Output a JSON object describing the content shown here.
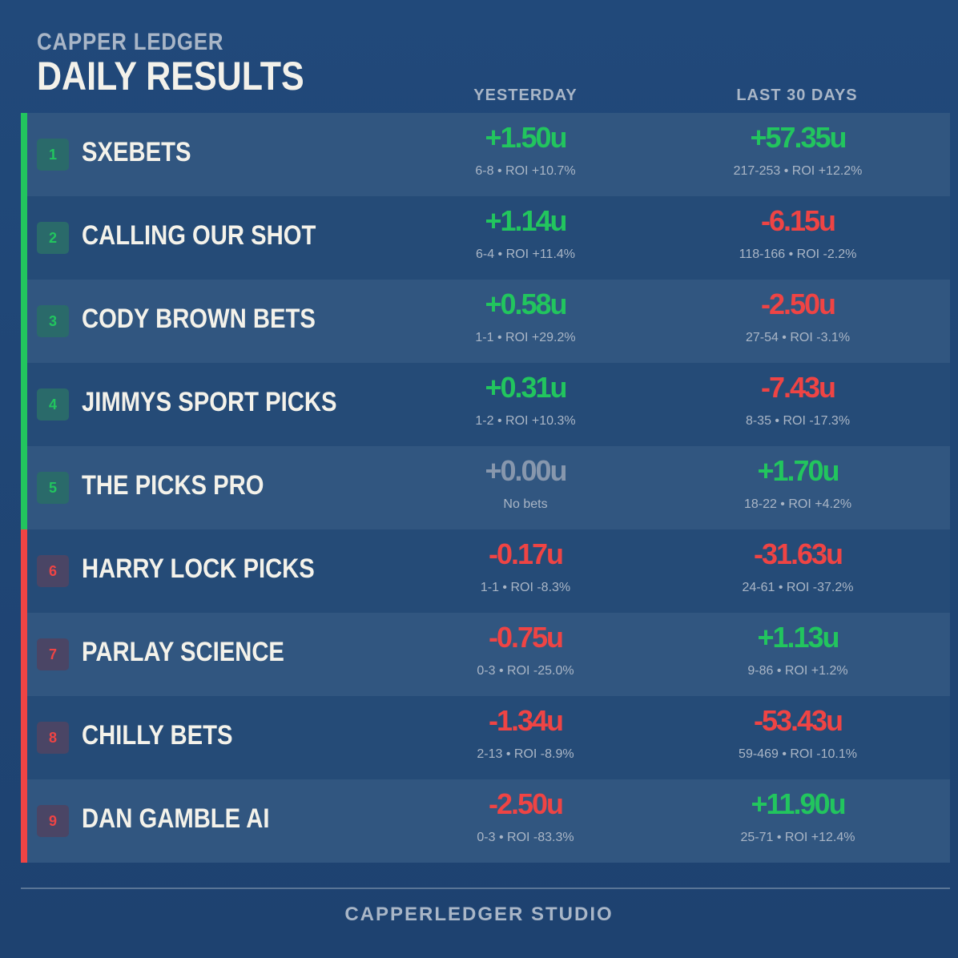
{
  "header": {
    "brand": "CAPPER LEDGER",
    "title": "DAILY RESULTS",
    "col_yesterday": "YESTERDAY",
    "col_last30": "LAST 30 DAYS"
  },
  "rows": [
    {
      "rank": "1",
      "name": "SXEBETS",
      "y_units": "+1.50u",
      "y_stat": "6-8 • ROI +10.7%",
      "l_units": "+57.35u",
      "l_stat": "217-253 • ROI +12.2%",
      "group": "pos",
      "y_color": "green",
      "l_color": "green"
    },
    {
      "rank": "2",
      "name": "CALLING OUR SHOT",
      "y_units": "+1.14u",
      "y_stat": "6-4 • ROI +11.4%",
      "l_units": "-6.15u",
      "l_stat": "118-166 • ROI -2.2%",
      "group": "pos",
      "y_color": "green",
      "l_color": "red"
    },
    {
      "rank": "3",
      "name": "CODY BROWN BETS",
      "y_units": "+0.58u",
      "y_stat": "1-1 • ROI +29.2%",
      "l_units": "-2.50u",
      "l_stat": "27-54 • ROI -3.1%",
      "group": "pos",
      "y_color": "green",
      "l_color": "red"
    },
    {
      "rank": "4",
      "name": "JIMMYS SPORT PICKS",
      "y_units": "+0.31u",
      "y_stat": "1-2 • ROI +10.3%",
      "l_units": "-7.43u",
      "l_stat": "8-35 • ROI -17.3%",
      "group": "pos",
      "y_color": "green",
      "l_color": "red"
    },
    {
      "rank": "5",
      "name": "THE PICKS PRO",
      "y_units": "+0.00u",
      "y_stat": "No bets",
      "l_units": "+1.70u",
      "l_stat": "18-22 • ROI +4.2%",
      "group": "pos",
      "y_color": "gray",
      "l_color": "green"
    },
    {
      "rank": "6",
      "name": "HARRY LOCK PICKS",
      "y_units": "-0.17u",
      "y_stat": "1-1 • ROI -8.3%",
      "l_units": "-31.63u",
      "l_stat": "24-61 • ROI -37.2%",
      "group": "neg",
      "y_color": "red",
      "l_color": "red"
    },
    {
      "rank": "7",
      "name": "PARLAY SCIENCE",
      "y_units": "-0.75u",
      "y_stat": "0-3 • ROI -25.0%",
      "l_units": "+1.13u",
      "l_stat": "9-86 • ROI +1.2%",
      "group": "neg",
      "y_color": "red",
      "l_color": "green"
    },
    {
      "rank": "8",
      "name": "CHILLY BETS",
      "y_units": "-1.34u",
      "y_stat": "2-13 • ROI -8.9%",
      "l_units": "-53.43u",
      "l_stat": "59-469 • ROI -10.1%",
      "group": "neg",
      "y_color": "red",
      "l_color": "red"
    },
    {
      "rank": "9",
      "name": "DAN GAMBLE AI",
      "y_units": "-2.50u",
      "y_stat": "0-3 • ROI -83.3%",
      "l_units": "+11.90u",
      "l_stat": "25-71 • ROI +12.4%",
      "group": "neg",
      "y_color": "red",
      "l_color": "green"
    }
  ],
  "footer": {
    "text": "CAPPERLEDGER STUDIO"
  },
  "colors": {
    "green": "#22c55e",
    "red": "#ef4444",
    "gray": "#8797ad",
    "background": "#21497a"
  }
}
